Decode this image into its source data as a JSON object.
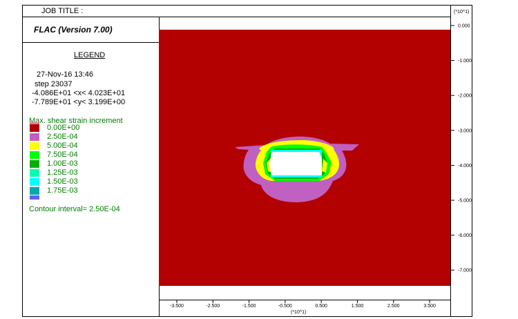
{
  "header": {
    "job_title": "JOB TITLE :",
    "app_title": "FLAC (Version 7.00)"
  },
  "legend": {
    "title": "LEGEND",
    "date": "27-Nov-16  13:46",
    "step": "step    23037",
    "x_range": "-4.086E+01 <x<  4.023E+01",
    "y_range": "-7.789E+01 <y<  3.199E+00",
    "contour_title": "Max. shear strain increment",
    "contour_interval": "Contour interval=  2.50E-04",
    "contours": [
      {
        "label": "0.00E+00",
        "color": "#b30000"
      },
      {
        "label": "2.50E-04",
        "color": "#c060c0"
      },
      {
        "label": "5.00E-04",
        "color": "#ffff00"
      },
      {
        "label": "7.50E-04",
        "color": "#00ff00"
      },
      {
        "label": "1.00E-03",
        "color": "#00b000"
      },
      {
        "label": "1.25E-03",
        "color": "#00ffb0"
      },
      {
        "label": "1.50E-03",
        "color": "#00ffff"
      },
      {
        "label": "1.75E-03",
        "color": "#00aaaa"
      }
    ],
    "extra_swatch_colors": [
      "#e080a0",
      "#6060ff"
    ]
  },
  "axes": {
    "y_scale_label": "(*10^1)",
    "x_scale_label": "(*10^1)",
    "y_ticks": [
      "0.000",
      "-1.000",
      "-2.000",
      "-3.000",
      "-4.000",
      "-5.000",
      "-6.000",
      "-7.000"
    ],
    "x_ticks": [
      "-3.500",
      "-2.500",
      "-1.500",
      "-0.500",
      "0.500",
      "1.500",
      "2.500",
      "3.500"
    ]
  },
  "colors": {
    "background_zone": "#b30000",
    "opening": "#ffffff"
  }
}
